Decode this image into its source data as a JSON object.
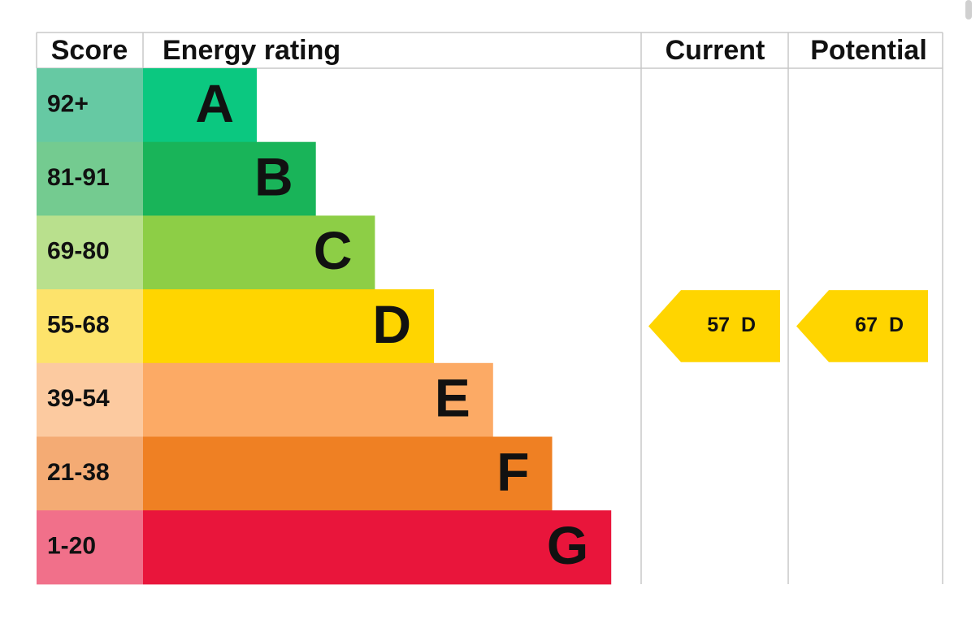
{
  "header": {
    "score": "Score",
    "rating": "Energy rating",
    "current": "Current",
    "potential": "Potential"
  },
  "bands": [
    {
      "score": "92+",
      "letter": "A",
      "color": "#0bc880",
      "score_color": "#66c9a3"
    },
    {
      "score": "81-91",
      "letter": "B",
      "color": "#19b459",
      "score_color": "#74cb90"
    },
    {
      "score": "69-80",
      "letter": "C",
      "color": "#8dce46",
      "score_color": "#b9e08d"
    },
    {
      "score": "55-68",
      "letter": "D",
      "color": "#ffd500",
      "score_color": "#fde36b"
    },
    {
      "score": "39-54",
      "letter": "E",
      "color": "#fcaa65",
      "score_color": "#fccaa0"
    },
    {
      "score": "21-38",
      "letter": "F",
      "color": "#ef8023",
      "score_color": "#f4ab74"
    },
    {
      "score": "1-20",
      "letter": "G",
      "color": "#e9153b",
      "score_color": "#f1708a"
    }
  ],
  "current": {
    "score": 57,
    "rating": "D"
  },
  "potential": {
    "score": 67,
    "rating": "D"
  }
}
